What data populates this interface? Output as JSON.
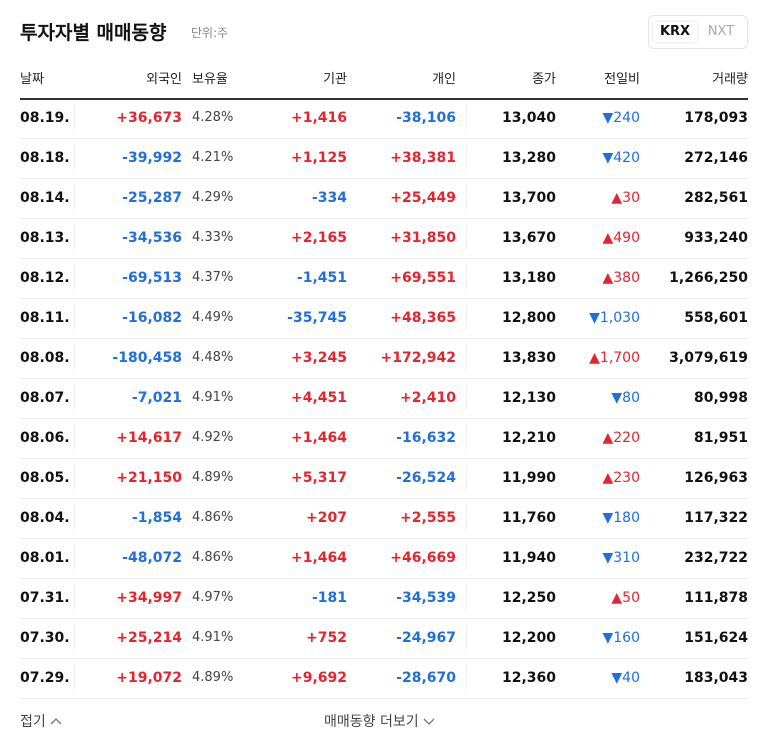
{
  "header": {
    "title": "투자자별 매매동향",
    "unit": "단위:주",
    "tabs": [
      "KRX",
      "NXT"
    ]
  },
  "table": {
    "columns": [
      "날짜",
      "외국인",
      "보유율",
      "기관",
      "개인",
      "종가",
      "전일비",
      "거래량"
    ],
    "rows": [
      [
        "08.19.",
        "+36,673",
        "4.28%",
        "+1,416",
        "-38,106",
        "13,040",
        "▼240",
        "178,093"
      ],
      [
        "08.18.",
        "-39,992",
        "4.21%",
        "+1,125",
        "+38,381",
        "13,280",
        "▼420",
        "272,146"
      ],
      [
        "08.14.",
        "-25,287",
        "4.29%",
        "-334",
        "+25,449",
        "13,700",
        "▲30",
        "282,561"
      ],
      [
        "08.13.",
        "-34,536",
        "4.33%",
        "+2,165",
        "+31,850",
        "13,670",
        "▲490",
        "933,240"
      ],
      [
        "08.12.",
        "-69,513",
        "4.37%",
        "-1,451",
        "+69,551",
        "13,180",
        "▲380",
        "1,266,250"
      ],
      [
        "08.11.",
        "-16,082",
        "4.49%",
        "-35,745",
        "+48,365",
        "12,800",
        "▼1,030",
        "558,601"
      ],
      [
        "08.08.",
        "-180,458",
        "4.48%",
        "+3,245",
        "+172,942",
        "13,830",
        "▲1,700",
        "3,079,619"
      ],
      [
        "08.07.",
        "-7,021",
        "4.91%",
        "+4,451",
        "+2,410",
        "12,130",
        "▼80",
        "80,998"
      ],
      [
        "08.06.",
        "+14,617",
        "4.92%",
        "+1,464",
        "-16,632",
        "12,210",
        "▲220",
        "81,951"
      ],
      [
        "08.05.",
        "+21,150",
        "4.89%",
        "+5,317",
        "-26,524",
        "11,990",
        "▲230",
        "126,963"
      ],
      [
        "08.04.",
        "-1,854",
        "4.86%",
        "+207",
        "+2,555",
        "11,760",
        "▼180",
        "117,322"
      ],
      [
        "08.01.",
        "-48,072",
        "4.86%",
        "+1,464",
        "+46,669",
        "11,940",
        "▼310",
        "232,722"
      ],
      [
        "07.31.",
        "+34,997",
        "4.97%",
        "-181",
        "-34,539",
        "12,250",
        "▲50",
        "111,878"
      ],
      [
        "07.30.",
        "+25,214",
        "4.91%",
        "+752",
        "-24,967",
        "12,200",
        "▼160",
        "151,624"
      ],
      [
        "07.29.",
        "+19,072",
        "4.89%",
        "+9,692",
        "-28,670",
        "12,360",
        "▼40",
        "183,043"
      ]
    ]
  },
  "footer": {
    "collapse": "접기",
    "more": "매매동향 더보기"
  }
}
